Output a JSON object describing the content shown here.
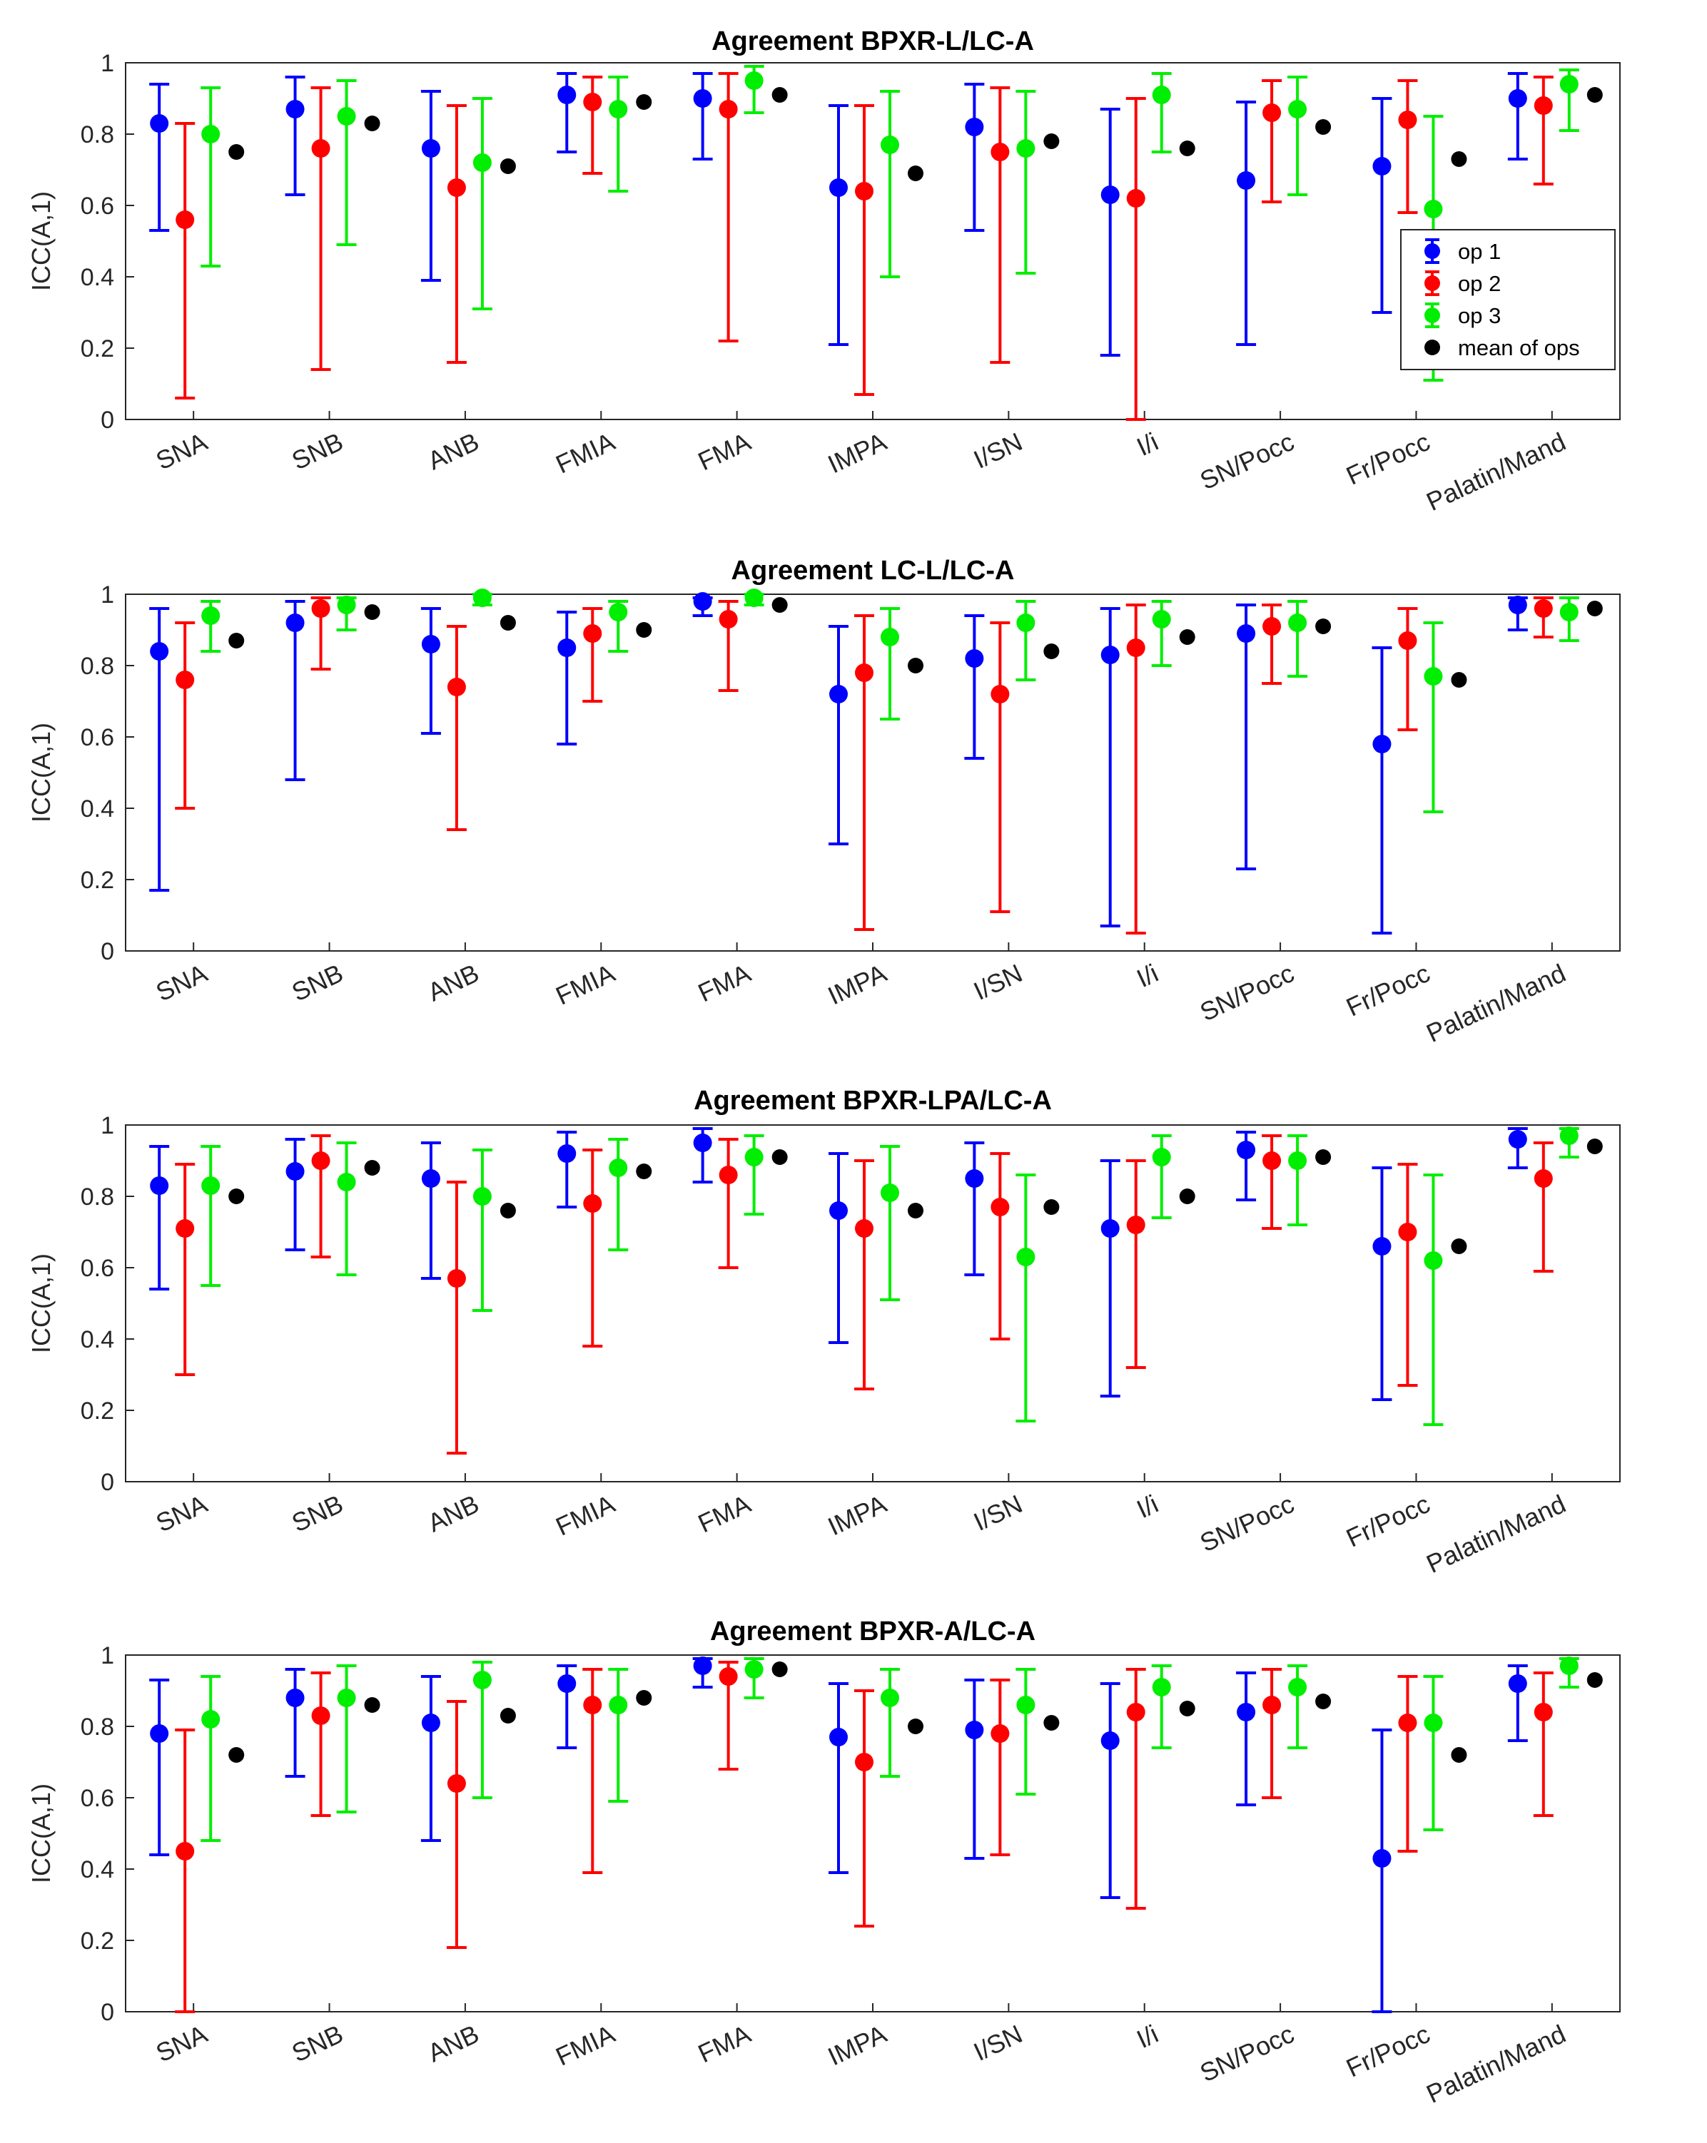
{
  "chart_data": [
    {
      "type": "errorbar",
      "title": "Agreement BPXR-L/LC-A",
      "ylabel": "ICC(A,1)",
      "ylim": [
        0,
        1
      ],
      "categories": [
        "SNA",
        "SNB",
        "ANB",
        "FMIA",
        "FMA",
        "IMPA",
        "I/SN",
        "I/i",
        "SN/Pocc",
        "Fr/Pocc",
        "Palatin/Mand"
      ],
      "series": [
        {
          "name": "op 1",
          "color": "#0000ff",
          "values": [
            0.83,
            0.87,
            0.76,
            0.91,
            0.9,
            0.65,
            0.82,
            0.63,
            0.67,
            0.71,
            0.9
          ],
          "lower": [
            0.53,
            0.63,
            0.39,
            0.75,
            0.73,
            0.21,
            0.53,
            0.18,
            0.21,
            0.3,
            0.73
          ],
          "upper": [
            0.94,
            0.96,
            0.92,
            0.97,
            0.97,
            0.88,
            0.94,
            0.87,
            0.89,
            0.9,
            0.97
          ]
        },
        {
          "name": "op 2",
          "color": "#ff0000",
          "values": [
            0.56,
            0.76,
            0.65,
            0.89,
            0.87,
            0.64,
            0.75,
            0.62,
            0.86,
            0.84,
            0.88
          ],
          "lower": [
            0.06,
            0.14,
            0.16,
            0.69,
            0.22,
            0.07,
            0.16,
            0.0,
            0.61,
            0.58,
            0.66
          ],
          "upper": [
            0.83,
            0.93,
            0.88,
            0.96,
            0.97,
            0.88,
            0.93,
            0.9,
            0.95,
            0.95,
            0.96
          ]
        },
        {
          "name": "op 3",
          "color": "#00ee00",
          "values": [
            0.8,
            0.85,
            0.72,
            0.87,
            0.95,
            0.77,
            0.76,
            0.91,
            0.87,
            0.59,
            0.94
          ],
          "lower": [
            0.43,
            0.49,
            0.31,
            0.64,
            0.86,
            0.4,
            0.41,
            0.75,
            0.63,
            0.11,
            0.81
          ],
          "upper": [
            0.93,
            0.95,
            0.9,
            0.96,
            0.99,
            0.92,
            0.92,
            0.97,
            0.96,
            0.85,
            0.98
          ]
        },
        {
          "name": "mean of ops",
          "color": "#000000",
          "values": [
            0.75,
            0.83,
            0.71,
            0.89,
            0.91,
            0.69,
            0.78,
            0.76,
            0.82,
            0.73,
            0.91
          ]
        }
      ]
    },
    {
      "type": "errorbar",
      "title": "Agreement LC-L/LC-A",
      "ylabel": "ICC(A,1)",
      "ylim": [
        0,
        1
      ],
      "categories": [
        "SNA",
        "SNB",
        "ANB",
        "FMIA",
        "FMA",
        "IMPA",
        "I/SN",
        "I/i",
        "SN/Pocc",
        "Fr/Pocc",
        "Palatin/Mand"
      ],
      "series": [
        {
          "name": "op 1",
          "color": "#0000ff",
          "values": [
            0.84,
            0.92,
            0.86,
            0.85,
            0.98,
            0.72,
            0.82,
            0.83,
            0.89,
            0.58,
            0.97
          ],
          "lower": [
            0.17,
            0.48,
            0.61,
            0.58,
            0.94,
            0.3,
            0.54,
            0.07,
            0.23,
            0.05,
            0.9
          ],
          "upper": [
            0.96,
            0.98,
            0.96,
            0.95,
            0.99,
            0.91,
            0.94,
            0.96,
            0.97,
            0.85,
            0.99
          ]
        },
        {
          "name": "op 2",
          "color": "#ff0000",
          "values": [
            0.76,
            0.96,
            0.74,
            0.89,
            0.93,
            0.78,
            0.72,
            0.85,
            0.91,
            0.87,
            0.96
          ],
          "lower": [
            0.4,
            0.79,
            0.34,
            0.7,
            0.73,
            0.06,
            0.11,
            0.05,
            0.75,
            0.62,
            0.88
          ],
          "upper": [
            0.92,
            0.99,
            0.91,
            0.96,
            0.98,
            0.94,
            0.92,
            0.97,
            0.97,
            0.96,
            0.99
          ]
        },
        {
          "name": "op 3",
          "color": "#00ee00",
          "values": [
            0.94,
            0.97,
            0.99,
            0.95,
            0.99,
            0.88,
            0.92,
            0.93,
            0.92,
            0.77,
            0.95
          ],
          "lower": [
            0.84,
            0.9,
            0.97,
            0.84,
            0.97,
            0.65,
            0.76,
            0.8,
            0.77,
            0.39,
            0.87
          ],
          "upper": [
            0.98,
            0.99,
            1.0,
            0.98,
            1.0,
            0.96,
            0.98,
            0.98,
            0.98,
            0.92,
            0.99
          ]
        },
        {
          "name": "mean of ops",
          "color": "#000000",
          "values": [
            0.87,
            0.95,
            0.92,
            0.9,
            0.97,
            0.8,
            0.84,
            0.88,
            0.91,
            0.76,
            0.96
          ]
        }
      ]
    },
    {
      "type": "errorbar",
      "title": "Agreement BPXR-LPA/LC-A",
      "ylabel": "ICC(A,1)",
      "ylim": [
        0,
        1
      ],
      "categories": [
        "SNA",
        "SNB",
        "ANB",
        "FMIA",
        "FMA",
        "IMPA",
        "I/SN",
        "I/i",
        "SN/Pocc",
        "Fr/Pocc",
        "Palatin/Mand"
      ],
      "series": [
        {
          "name": "op 1",
          "color": "#0000ff",
          "values": [
            0.83,
            0.87,
            0.85,
            0.92,
            0.95,
            0.76,
            0.85,
            0.71,
            0.93,
            0.66,
            0.96
          ],
          "lower": [
            0.54,
            0.65,
            0.57,
            0.77,
            0.84,
            0.39,
            0.58,
            0.24,
            0.79,
            0.23,
            0.88
          ],
          "upper": [
            0.94,
            0.96,
            0.95,
            0.98,
            0.99,
            0.92,
            0.95,
            0.9,
            0.98,
            0.88,
            0.99
          ]
        },
        {
          "name": "op 2",
          "color": "#ff0000",
          "values": [
            0.71,
            0.9,
            0.57,
            0.78,
            0.86,
            0.71,
            0.77,
            0.72,
            0.9,
            0.7,
            0.85
          ],
          "lower": [
            0.3,
            0.63,
            0.08,
            0.38,
            0.6,
            0.26,
            0.4,
            0.32,
            0.71,
            0.27,
            0.59
          ],
          "upper": [
            0.89,
            0.97,
            0.84,
            0.93,
            0.96,
            0.9,
            0.92,
            0.9,
            0.97,
            0.89,
            0.95
          ]
        },
        {
          "name": "op 3",
          "color": "#00ee00",
          "values": [
            0.83,
            0.84,
            0.8,
            0.88,
            0.91,
            0.81,
            0.63,
            0.91,
            0.9,
            0.62,
            0.97
          ],
          "lower": [
            0.55,
            0.58,
            0.48,
            0.65,
            0.75,
            0.51,
            0.17,
            0.74,
            0.72,
            0.16,
            0.91
          ],
          "upper": [
            0.94,
            0.95,
            0.93,
            0.96,
            0.97,
            0.94,
            0.86,
            0.97,
            0.97,
            0.86,
            0.99
          ]
        },
        {
          "name": "mean of ops",
          "color": "#000000",
          "values": [
            0.8,
            0.88,
            0.76,
            0.87,
            0.91,
            0.76,
            0.77,
            0.8,
            0.91,
            0.66,
            0.94
          ]
        }
      ]
    },
    {
      "type": "errorbar",
      "title": "Agreement BPXR-A/LC-A",
      "ylabel": "ICC(A,1)",
      "ylim": [
        0,
        1
      ],
      "categories": [
        "SNA",
        "SNB",
        "ANB",
        "FMIA",
        "FMA",
        "IMPA",
        "I/SN",
        "I/i",
        "SN/Pocc",
        "Fr/Pocc",
        "Palatin/Mand"
      ],
      "series": [
        {
          "name": "op 1",
          "color": "#0000ff",
          "values": [
            0.78,
            0.88,
            0.81,
            0.92,
            0.97,
            0.77,
            0.79,
            0.76,
            0.84,
            0.43,
            0.92
          ],
          "lower": [
            0.44,
            0.66,
            0.48,
            0.74,
            0.91,
            0.39,
            0.43,
            0.32,
            0.58,
            0.0,
            0.76
          ],
          "upper": [
            0.93,
            0.96,
            0.94,
            0.97,
            0.99,
            0.92,
            0.93,
            0.92,
            0.95,
            0.79,
            0.97
          ]
        },
        {
          "name": "op 2",
          "color": "#ff0000",
          "values": [
            0.45,
            0.83,
            0.64,
            0.86,
            0.94,
            0.7,
            0.78,
            0.84,
            0.86,
            0.81,
            0.84
          ],
          "lower": [
            0.0,
            0.55,
            0.18,
            0.39,
            0.68,
            0.24,
            0.44,
            0.29,
            0.6,
            0.45,
            0.55
          ],
          "upper": [
            0.79,
            0.95,
            0.87,
            0.96,
            0.98,
            0.9,
            0.93,
            0.96,
            0.96,
            0.94,
            0.95
          ]
        },
        {
          "name": "op 3",
          "color": "#00ee00",
          "values": [
            0.82,
            0.88,
            0.93,
            0.86,
            0.96,
            0.88,
            0.86,
            0.91,
            0.91,
            0.81,
            0.97
          ],
          "lower": [
            0.48,
            0.56,
            0.6,
            0.59,
            0.88,
            0.66,
            0.61,
            0.74,
            0.74,
            0.51,
            0.91
          ],
          "upper": [
            0.94,
            0.97,
            0.98,
            0.96,
            0.99,
            0.96,
            0.96,
            0.97,
            0.97,
            0.94,
            0.99
          ]
        },
        {
          "name": "mean of ops",
          "color": "#000000",
          "values": [
            0.72,
            0.86,
            0.83,
            0.88,
            0.96,
            0.8,
            0.81,
            0.85,
            0.87,
            0.72,
            0.93
          ]
        }
      ]
    }
  ],
  "yticks": [
    "0",
    "0.2",
    "0.4",
    "0.6",
    "0.8",
    "1"
  ],
  "legend": {
    "location": "top-right of first panel",
    "entries": [
      "op 1",
      "op 2",
      "op 3",
      "mean of ops"
    ]
  }
}
